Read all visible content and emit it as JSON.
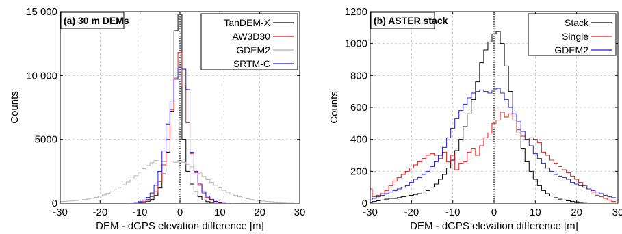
{
  "chart_data": [
    {
      "type": "histogram",
      "panel_label": "(a) 30 m DEMs",
      "xlabel": "DEM - dGPS elevation difference [m]",
      "ylabel": "Counts",
      "xlim": [
        -30,
        30
      ],
      "ylim": [
        0,
        15000
      ],
      "xticks": [
        -30,
        -20,
        -10,
        0,
        10,
        20,
        30
      ],
      "yticks": [
        0,
        5000,
        10000,
        15000
      ],
      "ytick_labels": [
        "0",
        "5000",
        "10 000",
        "15 000"
      ],
      "grid": true,
      "legend_position": "top-right",
      "zero_line": true,
      "bin_width": 1,
      "x": [
        -30,
        -29,
        -28,
        -27,
        -26,
        -25,
        -24,
        -23,
        -22,
        -21,
        -20,
        -19,
        -18,
        -17,
        -16,
        -15,
        -14,
        -13,
        -12,
        -11,
        -10,
        -9,
        -8,
        -7,
        -6,
        -5,
        -4,
        -3,
        -2,
        -1,
        0,
        1,
        2,
        3,
        4,
        5,
        6,
        7,
        8,
        9,
        10,
        11,
        12,
        13,
        14,
        15,
        16,
        17,
        18,
        19,
        20,
        21,
        22,
        23,
        24,
        25,
        26,
        27,
        28,
        29,
        30
      ],
      "series": [
        {
          "name": "TanDEM-X",
          "color": "#000000",
          "values": [
            0,
            0,
            0,
            0,
            0,
            0,
            0,
            0,
            0,
            0,
            0,
            0,
            0,
            0,
            0,
            0,
            0,
            0,
            0,
            10,
            30,
            60,
            150,
            300,
            600,
            1200,
            2300,
            4000,
            7200,
            13500,
            14800,
            5000,
            2500,
            1500,
            900,
            500,
            250,
            120,
            60,
            30,
            15,
            5,
            0,
            0,
            0,
            0,
            0,
            0,
            0,
            0,
            0,
            0,
            0,
            0,
            0,
            0,
            0,
            0,
            0,
            0
          ]
        },
        {
          "name": "AW3D30",
          "color": "#e8191c",
          "values": [
            0,
            0,
            0,
            0,
            0,
            0,
            0,
            0,
            0,
            0,
            0,
            0,
            0,
            0,
            0,
            0,
            0,
            0,
            10,
            30,
            80,
            150,
            300,
            500,
            900,
            1700,
            3000,
            5000,
            7300,
            9800,
            11800,
            9200,
            6300,
            3900,
            2400,
            1400,
            800,
            450,
            250,
            120,
            60,
            30,
            10,
            0,
            0,
            0,
            0,
            0,
            0,
            0,
            0,
            0,
            0,
            0,
            0,
            0,
            0,
            0,
            0,
            0
          ]
        },
        {
          "name": "GDEM2",
          "color": "#b4b4b4",
          "values": [
            120,
            140,
            160,
            180,
            210,
            240,
            280,
            330,
            390,
            460,
            540,
            640,
            760,
            900,
            1060,
            1240,
            1440,
            1660,
            1900,
            2150,
            2420,
            2700,
            2950,
            3170,
            3340,
            3300,
            3250,
            3300,
            3280,
            3200,
            3350,
            3200,
            3050,
            2850,
            2600,
            2350,
            2100,
            1850,
            1620,
            1400,
            1200,
            1020,
            860,
            720,
            600,
            500,
            410,
            340,
            280,
            230,
            190,
            160,
            130,
            110,
            90,
            75,
            60,
            50,
            40,
            30
          ]
        },
        {
          "name": "SRTM-C",
          "color": "#1e1ee6",
          "values": [
            0,
            0,
            0,
            0,
            0,
            0,
            0,
            0,
            0,
            0,
            0,
            0,
            0,
            0,
            0,
            0,
            0,
            0,
            20,
            50,
            120,
            250,
            450,
            800,
            1400,
            2500,
            4100,
            6200,
            8000,
            9700,
            10600,
            10500,
            8900,
            4000,
            2500,
            1500,
            900,
            550,
            300,
            150,
            80,
            40,
            15,
            0,
            0,
            0,
            0,
            0,
            0,
            0,
            0,
            0,
            0,
            0,
            0,
            0,
            0,
            0,
            0,
            0
          ]
        }
      ]
    },
    {
      "type": "histogram",
      "panel_label": "(b) ASTER stack",
      "xlabel": "DEM - dGPS elevation difference [m]",
      "ylabel": "Counts",
      "xlim": [
        -30,
        30
      ],
      "ylim": [
        0,
        1200
      ],
      "xticks": [
        -30,
        -20,
        -10,
        0,
        10,
        20,
        30
      ],
      "xtick_labels": [
        "-30",
        "-20",
        "-10",
        "0",
        "10",
        "20",
        "30"
      ],
      "yticks": [
        0,
        200,
        400,
        600,
        800,
        1000,
        1200
      ],
      "grid": true,
      "legend_position": "top-right",
      "zero_line": true,
      "bin_width": 1,
      "x": [
        -30,
        -29,
        -28,
        -27,
        -26,
        -25,
        -24,
        -23,
        -22,
        -21,
        -20,
        -19,
        -18,
        -17,
        -16,
        -15,
        -14,
        -13,
        -12,
        -11,
        -10,
        -9,
        -8,
        -7,
        -6,
        -5,
        -4,
        -3,
        -2,
        -1,
        0,
        1,
        2,
        3,
        4,
        5,
        6,
        7,
        8,
        9,
        10,
        11,
        12,
        13,
        14,
        15,
        16,
        17,
        18,
        19,
        20,
        21,
        22,
        23,
        24,
        25,
        26,
        27,
        28,
        29,
        30
      ],
      "series": [
        {
          "name": "Stack",
          "color": "#000000",
          "values": [
            5,
            10,
            15,
            20,
            25,
            30,
            30,
            35,
            40,
            45,
            50,
            55,
            60,
            70,
            80,
            100,
            120,
            150,
            180,
            220,
            270,
            330,
            400,
            480,
            560,
            650,
            760,
            880,
            960,
            1010,
            1060,
            1075,
            1000,
            860,
            700,
            560,
            440,
            340,
            260,
            200,
            150,
            110,
            80,
            60,
            45,
            35,
            25,
            20,
            15,
            10,
            8,
            5,
            3,
            0,
            0,
            0,
            0,
            0,
            0,
            0
          ]
        },
        {
          "name": "Single",
          "color": "#e8191c",
          "values": [
            90,
            40,
            50,
            60,
            80,
            110,
            140,
            160,
            180,
            200,
            220,
            240,
            260,
            280,
            300,
            310,
            300,
            280,
            320,
            260,
            300,
            210,
            250,
            260,
            320,
            340,
            300,
            360,
            410,
            440,
            500,
            520,
            570,
            540,
            560,
            520,
            460,
            420,
            400,
            410,
            400,
            380,
            320,
            300,
            270,
            250,
            230,
            210,
            190,
            170,
            150,
            130,
            110,
            90,
            70,
            50,
            40,
            30,
            20,
            10
          ]
        },
        {
          "name": "GDEM2",
          "color": "#1e1ee6",
          "values": [
            20,
            30,
            40,
            50,
            60,
            70,
            80,
            90,
            100,
            110,
            130,
            150,
            160,
            180,
            200,
            230,
            260,
            300,
            350,
            410,
            470,
            530,
            580,
            620,
            660,
            690,
            700,
            710,
            700,
            690,
            710,
            720,
            690,
            650,
            600,
            560,
            510,
            450,
            400,
            360,
            310,
            280,
            250,
            220,
            200,
            180,
            170,
            160,
            150,
            130,
            120,
            110,
            100,
            90,
            80,
            70,
            60,
            50,
            40,
            35
          ]
        }
      ]
    }
  ]
}
